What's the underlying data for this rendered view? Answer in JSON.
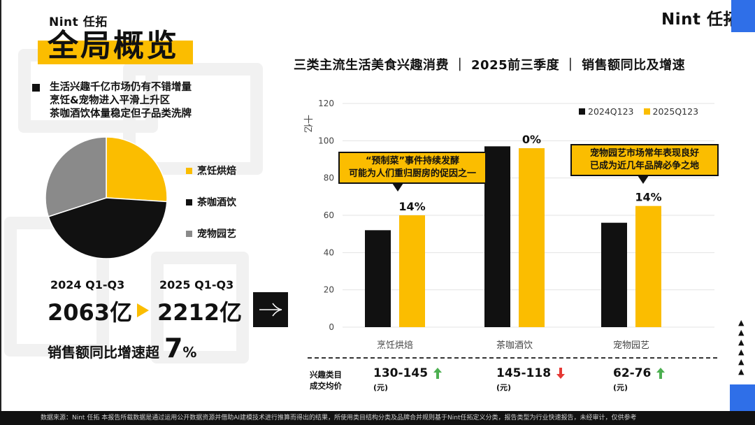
{
  "header": {
    "logo_small": "Nint 任拓",
    "logo_big": "Nint 任拓",
    "title": "全局概览"
  },
  "intro": {
    "lines": [
      "生活兴趣千亿市场仍有不错增量",
      "烹饪&宠物进入平滑上升区",
      "茶咖酒饮体量稳定但子品类洗牌"
    ]
  },
  "pie": {
    "segments": [
      {
        "label": "烹饪烘焙",
        "share": 0.26,
        "color": "#fbbd00"
      },
      {
        "label": "茶咖酒饮",
        "share": 0.44,
        "color": "#111111"
      },
      {
        "label": "宠物园艺",
        "share": 0.3,
        "color": "#8a8a8a"
      }
    ]
  },
  "summary": {
    "year_a": "2024 Q1-Q3",
    "year_b": "2025 Q1-Q3",
    "value_a": "2063亿",
    "value_b": "2212亿",
    "growth_prefix": "销售额同比增速超",
    "growth_value": "7",
    "growth_unit": "%"
  },
  "chart_data": {
    "type": "bar",
    "title": "三类主流生活美食兴趣消费 ｜ 2025前三季度 ｜ 销售额同比及增速",
    "ylabel": "十亿",
    "ylim": [
      0,
      120
    ],
    "yticks": [
      0,
      20,
      40,
      60,
      80,
      100,
      120
    ],
    "categories": [
      "烹饪烘焙",
      "茶咖酒饮",
      "宠物园艺"
    ],
    "series": [
      {
        "name": "2024Q123",
        "color": "#111111",
        "values": [
          52,
          97,
          56
        ]
      },
      {
        "name": "2025Q123",
        "color": "#fbbd00",
        "values": [
          60,
          96,
          65
        ]
      }
    ],
    "growth_labels": [
      "14%",
      "0%",
      "14%"
    ],
    "annotations": [
      {
        "line1": "“预制菜”事件持续发酵",
        "line2": "可能为人们重归厨房的促因之一"
      },
      {
        "line1": "宠物园艺市场常年表现良好",
        "line2": "已成为近几年品牌必争之地"
      }
    ]
  },
  "prices": {
    "row_label_1": "兴趣类目",
    "row_label_2": "成交均价",
    "items": [
      {
        "range": "130-145",
        "unit": "(元)",
        "trend": "up",
        "color": "#4caf50"
      },
      {
        "range": "145-118",
        "unit": "(元)",
        "trend": "down",
        "color": "#e53935"
      },
      {
        "range": "62-76",
        "unit": "(元)",
        "trend": "up",
        "color": "#4caf50"
      }
    ]
  },
  "decor": {
    "triangles": "▲\n▲\n▲\n▲\n▲\n▲"
  },
  "footer": {
    "text": "数据来源：Nint 任拓     本报告所载数据是通过运用公开数据资源并借助AI建模技术进行推算而得出的结果，所使用类目结构分类及品牌合并规则基于Nint任拓定义分类，报告类型为行业快速报告，未经审计，仅供参考"
  }
}
